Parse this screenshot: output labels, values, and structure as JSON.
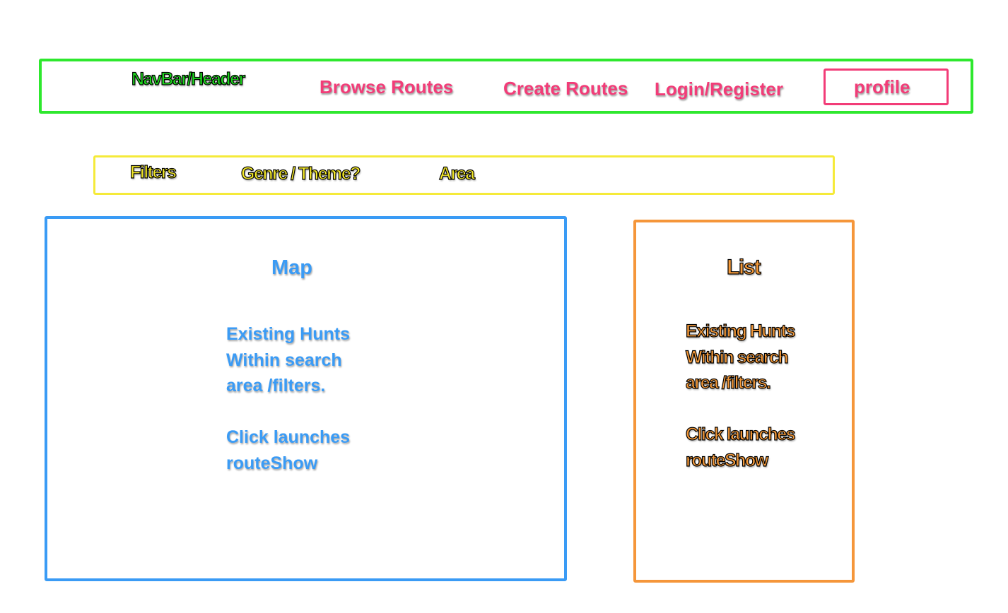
{
  "navbar": {
    "title": "NavBar/Header",
    "links": {
      "browse": "Browse Routes",
      "create": "Create Routes",
      "login": "Login/Register"
    },
    "profile": "profile"
  },
  "filters": {
    "title": "Filters",
    "genre": "Genre / Theme?",
    "area": "Area"
  },
  "map": {
    "title": "Map",
    "lines": [
      "Existing Hunts",
      "Within search",
      "area /filters."
    ],
    "click_lines": [
      "Click launches",
      "routeShow"
    ]
  },
  "list": {
    "title": "List",
    "lines": [
      "Existing Hunts",
      "Within search",
      "area /filters."
    ],
    "click_lines": [
      "Click launches",
      "routeShow"
    ]
  },
  "colors": {
    "navbar": "#2ee82e",
    "link": "#f23c78",
    "filters": "#f5ea3a",
    "map": "#3a9bf5",
    "list": "#f5963a"
  }
}
